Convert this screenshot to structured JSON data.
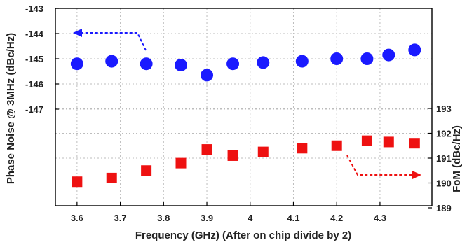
{
  "chart_data": {
    "type": "scatter",
    "title": "",
    "xlabel": "Frequency (GHz) (After on chip divide by 2)",
    "ylabel_left": "Phase Noise @ 3MHz (dBc/Hz)",
    "ylabel_right": "FoM (dBc/Hz)",
    "grid": true,
    "xlim": [
      3.55,
      4.42
    ],
    "x_ticks": [
      "3.6",
      "3.7",
      "3.8",
      "3.9",
      "4",
      "4.1",
      "4.2",
      "4.3"
    ],
    "x_tick_values": [
      3.6,
      3.7,
      3.8,
      3.9,
      4.0,
      4.1,
      4.2,
      4.3
    ],
    "y_left": {
      "ticks": [
        "-143",
        "-144",
        "-145",
        "-146",
        "-147"
      ],
      "tick_values": [
        -143,
        -144,
        -145,
        -146,
        -147
      ]
    },
    "y_right": {
      "ticks": [
        "193",
        "192",
        "191",
        "190",
        "189"
      ],
      "tick_values": [
        193,
        192,
        191,
        190,
        189
      ]
    },
    "series": [
      {
        "axis": "left",
        "marker": "circle",
        "color": "#1a1aff",
        "x": [
          3.6,
          3.68,
          3.76,
          3.84,
          3.9,
          3.96,
          4.03,
          4.12,
          4.2,
          4.27,
          4.32,
          4.38
        ],
        "y": [
          -145.2,
          -145.1,
          -145.2,
          -145.25,
          -145.65,
          -145.2,
          -145.15,
          -145.1,
          -145.0,
          -145.0,
          -144.85,
          -144.65
        ]
      },
      {
        "axis": "right",
        "marker": "square",
        "color": "#ee1111",
        "x": [
          3.6,
          3.68,
          3.76,
          3.84,
          3.9,
          3.96,
          4.03,
          4.12,
          4.2,
          4.27,
          4.32,
          4.38
        ],
        "y": [
          190.05,
          190.2,
          190.5,
          190.8,
          191.35,
          191.1,
          191.25,
          191.4,
          191.5,
          191.7,
          191.65,
          191.6
        ]
      }
    ],
    "annotations": [
      {
        "type": "arrow",
        "direction": "left",
        "color": "#1a1aff",
        "meaning": "circles-use-left-axis"
      },
      {
        "type": "arrow",
        "direction": "right",
        "color": "#ee1111",
        "meaning": "squares-use-right-axis"
      }
    ]
  }
}
